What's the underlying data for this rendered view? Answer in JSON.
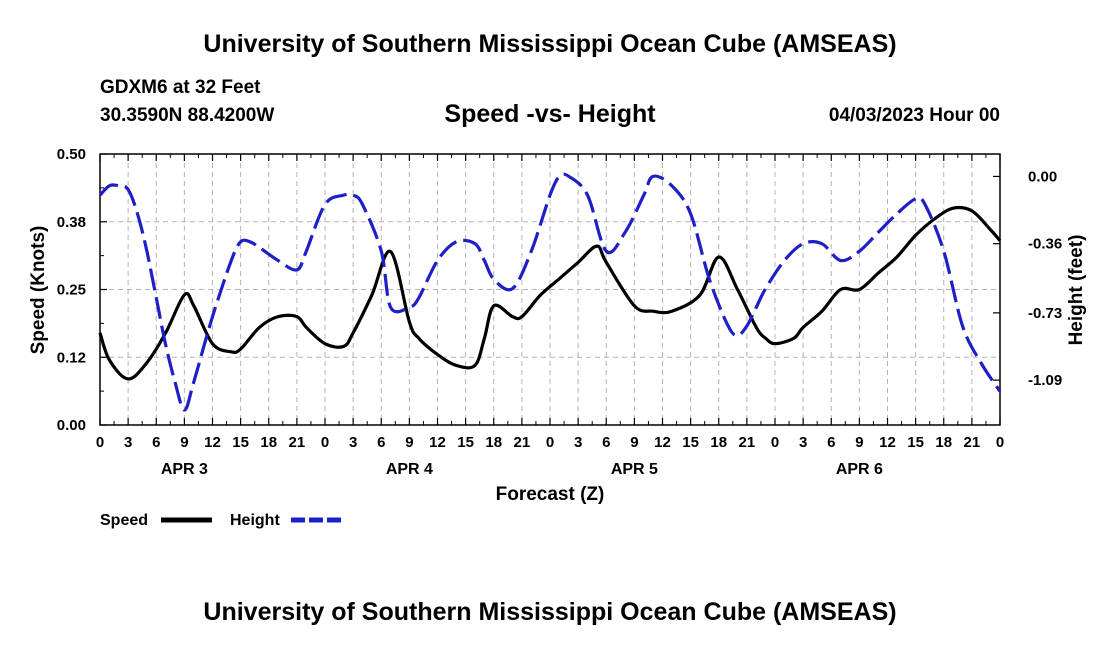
{
  "header": {
    "title_top": "University of Southern Mississippi Ocean Cube (AMSEAS)",
    "station": "GDXM6 at 32 Feet",
    "coords": "30.3590N  88.4200W",
    "chart_title": "Speed -vs- Height",
    "date": "04/03/2023 Hour 00",
    "title_bottom": "University of Southern Mississippi Ocean Cube (AMSEAS)"
  },
  "legend": {
    "speed_label": "Speed",
    "height_label": "Height"
  },
  "colors": {
    "speed": "#000000",
    "height": "#1f1fc8",
    "grid": "#b4b4b4"
  },
  "chart_data": {
    "type": "line",
    "xlabel": "Forecast (Z)",
    "ylabel_left": "Speed (Knots)",
    "ylabel_right": "Height (feet)",
    "x_range_hours": [
      0,
      96
    ],
    "ylim_left": [
      0,
      0.5
    ],
    "ylim_right": [
      -1.33,
      0.12
    ],
    "left_ticks": [
      "0.00",
      "0.12",
      "0.25",
      "0.38",
      "0.50"
    ],
    "right_ticks": [
      "0.00",
      "-0.36",
      "-0.73",
      "-1.09"
    ],
    "x_tick_labels": [
      "0",
      "3",
      "6",
      "9",
      "12",
      "15",
      "18",
      "21",
      "0",
      "3",
      "6",
      "9",
      "12",
      "15",
      "18",
      "21",
      "0",
      "3",
      "6",
      "9",
      "12",
      "15",
      "18",
      "21",
      "0",
      "3",
      "6",
      "9",
      "12",
      "15",
      "18",
      "21",
      "0"
    ],
    "day_labels": [
      "APR 3",
      "APR 4",
      "APR 5",
      "APR 6"
    ],
    "series": [
      {
        "name": "Speed",
        "axis": "left",
        "style": "solid",
        "x": [
          0,
          1,
          3,
          5,
          7,
          9,
          10,
          12,
          14,
          15,
          17,
          19,
          21,
          22,
          24,
          26,
          27,
          29,
          31,
          33,
          34,
          36,
          38,
          40,
          41,
          42,
          44,
          45,
          47,
          49,
          51,
          53,
          54,
          57,
          59,
          61,
          64,
          66,
          68,
          70,
          71,
          72,
          74,
          75,
          77,
          79,
          81,
          83,
          85,
          87,
          89,
          91,
          93,
          95,
          96
        ],
        "values": [
          0.17,
          0.12,
          0.085,
          0.115,
          0.17,
          0.24,
          0.22,
          0.15,
          0.135,
          0.14,
          0.18,
          0.2,
          0.2,
          0.18,
          0.15,
          0.145,
          0.17,
          0.24,
          0.32,
          0.19,
          0.16,
          0.13,
          0.11,
          0.11,
          0.16,
          0.22,
          0.2,
          0.2,
          0.24,
          0.27,
          0.3,
          0.33,
          0.3,
          0.22,
          0.21,
          0.21,
          0.24,
          0.31,
          0.25,
          0.18,
          0.16,
          0.15,
          0.16,
          0.18,
          0.21,
          0.25,
          0.25,
          0.28,
          0.31,
          0.35,
          0.38,
          0.4,
          0.395,
          0.36,
          0.34
        ]
      },
      {
        "name": "Height",
        "axis": "right",
        "style": "dashed",
        "x": [
          0,
          1,
          2,
          3,
          4,
          5,
          6,
          7,
          8,
          9,
          10,
          12,
          14,
          15,
          16,
          17,
          19,
          21,
          22,
          24,
          26,
          27,
          28,
          30,
          31,
          33,
          34,
          36,
          38,
          40,
          41,
          42,
          44,
          46,
          48,
          49,
          50,
          52,
          54,
          56,
          58,
          59,
          61,
          63,
          65,
          67,
          68,
          69,
          70,
          71,
          73,
          75,
          77,
          79,
          81,
          83,
          85,
          87,
          88,
          90,
          92,
          94,
          96
        ],
        "values": [
          -0.1,
          -0.05,
          -0.05,
          -0.07,
          -0.2,
          -0.4,
          -0.65,
          -0.9,
          -1.1,
          -1.25,
          -1.1,
          -0.75,
          -0.45,
          -0.35,
          -0.35,
          -0.38,
          -0.45,
          -0.5,
          -0.4,
          -0.15,
          -0.1,
          -0.1,
          -0.15,
          -0.4,
          -0.7,
          -0.7,
          -0.65,
          -0.45,
          -0.35,
          -0.36,
          -0.45,
          -0.55,
          -0.6,
          -0.4,
          -0.1,
          0.0,
          0.0,
          -0.1,
          -0.4,
          -0.3,
          -0.1,
          0.0,
          -0.05,
          -0.2,
          -0.55,
          -0.8,
          -0.85,
          -0.8,
          -0.7,
          -0.6,
          -0.45,
          -0.36,
          -0.36,
          -0.45,
          -0.4,
          -0.3,
          -0.2,
          -0.12,
          -0.15,
          -0.4,
          -0.8,
          -1.0,
          -1.15
        ]
      }
    ]
  }
}
